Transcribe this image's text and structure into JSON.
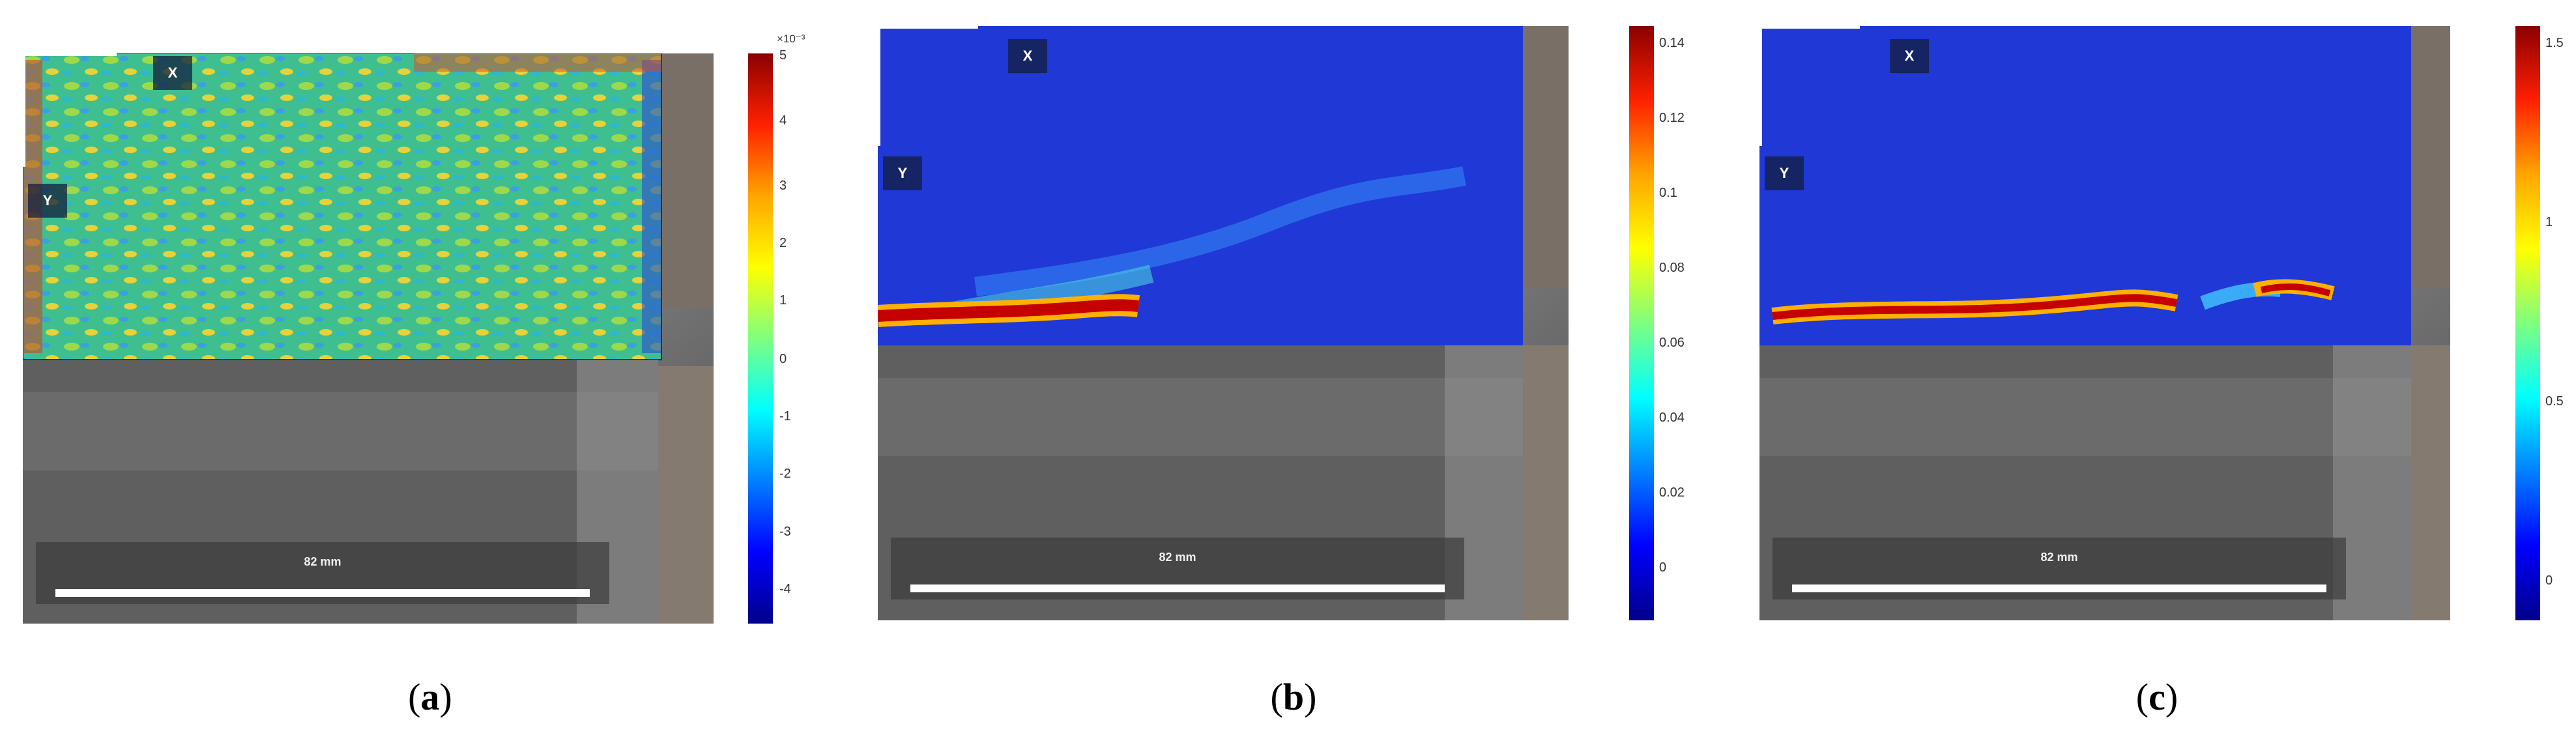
{
  "panels": [
    {
      "id": "a",
      "caption_open": "(",
      "caption_letter": "a",
      "caption_close": ")",
      "x_label": "X",
      "y_label": "Y",
      "scale_label": "82 mm",
      "colorbar_exponent": "×10⁻³",
      "colorbar_ticks": [
        "5",
        "4",
        "3",
        "2",
        "1",
        "0",
        "-1",
        "-2",
        "-3",
        "-4"
      ],
      "colormap": "jet",
      "field": "speckled strain field, values near 0 with red/blue extremes at edges"
    },
    {
      "id": "b",
      "caption_open": "(",
      "caption_letter": "b",
      "caption_close": ")",
      "x_label": "X",
      "y_label": "Y",
      "scale_label": "82 mm",
      "colorbar_ticks": [
        "0.14",
        "0.12",
        "0.1",
        "0.08",
        "0.06",
        "0.04",
        "0.02",
        "0"
      ],
      "colormap": "jet",
      "field": "mostly blue with a red crack band near the bottom-left"
    },
    {
      "id": "c",
      "caption_open": "(",
      "caption_letter": "c",
      "caption_close": ")",
      "x_label": "X",
      "y_label": "Y",
      "scale_label": "82 mm",
      "colorbar_ticks": [
        "1.5",
        "1",
        "0.5",
        "0"
      ],
      "colormap": "jet",
      "field": "blue with a long red crack band across the lower region"
    }
  ],
  "colors": {
    "jet_top": "#c00000",
    "jet_mid": "#7fff7f",
    "jet_bottom": "#00008f",
    "field_blue": "#1f38d6",
    "specimen_gray": "#6b6b6b"
  }
}
